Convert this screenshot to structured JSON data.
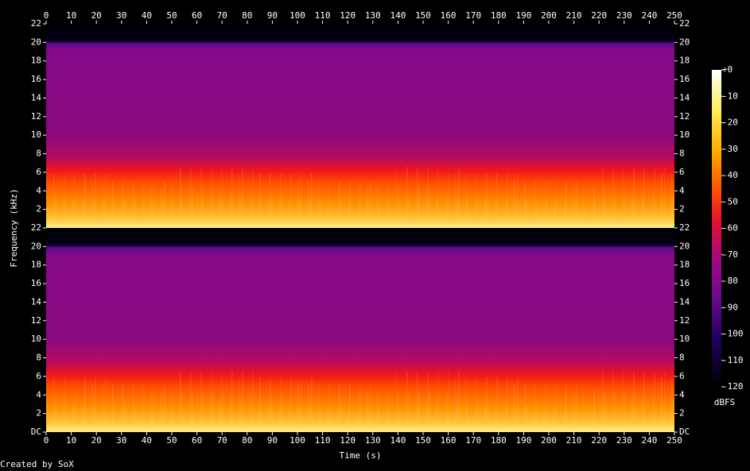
{
  "chart_data": {
    "type": "spectrogram",
    "xlabel": "Time (s)",
    "ylabel": "Frequency (kHz)",
    "xlim": [
      0,
      250
    ],
    "xticks": [
      0,
      10,
      20,
      30,
      40,
      50,
      60,
      70,
      80,
      90,
      100,
      110,
      120,
      130,
      140,
      150,
      160,
      170,
      180,
      190,
      200,
      210,
      220,
      230,
      240,
      250
    ],
    "channels": [
      {
        "ylim": [
          0,
          22
        ],
        "yticks": [
          2,
          4,
          6,
          8,
          10,
          12,
          14,
          16,
          18,
          20,
          22
        ]
      },
      {
        "ylim": [
          0,
          22
        ],
        "yticks": [
          {
            "value": 0,
            "label": "DC"
          },
          2,
          4,
          6,
          8,
          10,
          12,
          14,
          16,
          18,
          20,
          22
        ]
      }
    ],
    "colorbar": {
      "label": "dBFS",
      "lim": [
        -120,
        0
      ],
      "ticks": [
        {
          "value": 0,
          "label": "+0"
        },
        -10,
        -20,
        -30,
        -40,
        -50,
        -60,
        -70,
        -80,
        -90,
        -100,
        -110,
        -120
      ]
    },
    "footer": "Created by SoX"
  }
}
